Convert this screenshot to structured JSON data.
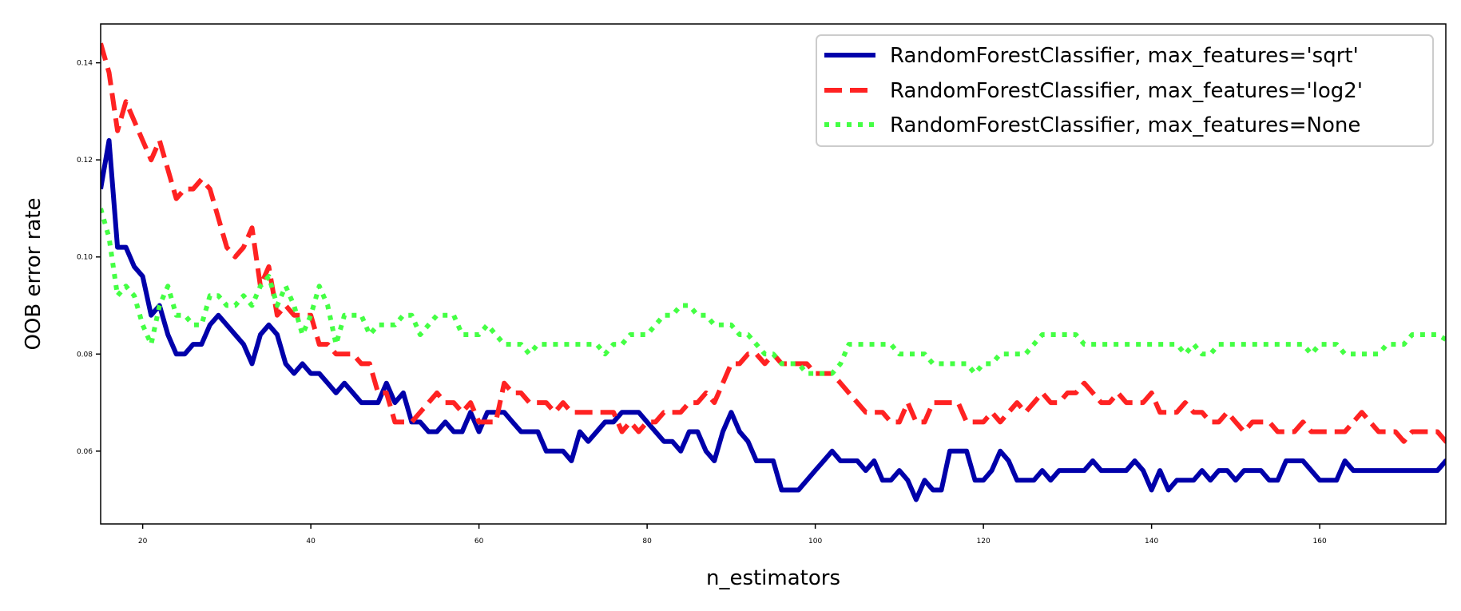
{
  "chart_data": {
    "type": "line",
    "title": "",
    "xlabel": "n_estimators",
    "ylabel": "OOB error rate",
    "xlim": [
      15,
      175
    ],
    "ylim": [
      0.045,
      0.148
    ],
    "x_ticks": [
      20,
      40,
      60,
      80,
      100,
      120,
      140,
      160
    ],
    "y_ticks": [
      0.06,
      0.08,
      0.1,
      0.12,
      0.14
    ],
    "y_tick_labels": [
      "0.06",
      "0.08",
      "0.10",
      "0.12",
      "0.14"
    ],
    "grid": false,
    "legend_position": "top-right",
    "x_start": 15,
    "x_step": 1,
    "series": [
      {
        "name": "RandomForestClassifier, max_features='sqrt'",
        "color": "#0000aa",
        "style": "solid",
        "values": [
          0.114,
          0.124,
          0.102,
          0.102,
          0.098,
          0.096,
          0.088,
          0.09,
          0.084,
          0.08,
          0.08,
          0.082,
          0.082,
          0.086,
          0.088,
          0.086,
          0.084,
          0.082,
          0.078,
          0.084,
          0.086,
          0.084,
          0.078,
          0.076,
          0.078,
          0.076,
          0.076,
          0.074,
          0.072,
          0.074,
          0.072,
          0.07,
          0.07,
          0.07,
          0.074,
          0.07,
          0.072,
          0.066,
          0.066,
          0.064,
          0.064,
          0.066,
          0.064,
          0.064,
          0.068,
          0.064,
          0.068,
          0.068,
          0.068,
          0.066,
          0.064,
          0.064,
          0.064,
          0.06,
          0.06,
          0.06,
          0.058,
          0.064,
          0.062,
          0.064,
          0.066,
          0.066,
          0.068,
          0.068,
          0.068,
          0.066,
          0.064,
          0.062,
          0.062,
          0.06,
          0.064,
          0.064,
          0.06,
          0.058,
          0.064,
          0.068,
          0.064,
          0.062,
          0.058,
          0.058,
          0.058,
          0.052,
          0.052,
          0.052,
          0.054,
          0.056,
          0.058,
          0.06,
          0.058,
          0.058,
          0.058,
          0.056,
          0.058,
          0.054,
          0.054,
          0.056,
          0.054,
          0.05,
          0.054,
          0.052,
          0.052,
          0.06,
          0.06,
          0.06,
          0.054,
          0.054,
          0.056,
          0.06,
          0.058,
          0.054,
          0.054,
          0.054,
          0.056,
          0.054,
          0.056,
          0.056,
          0.056,
          0.056,
          0.058,
          0.056,
          0.056,
          0.056,
          0.056,
          0.058,
          0.056,
          0.052,
          0.056,
          0.052,
          0.054,
          0.054,
          0.054,
          0.056,
          0.054,
          0.056,
          0.056,
          0.054,
          0.056,
          0.056,
          0.056,
          0.054,
          0.054,
          0.058,
          0.058,
          0.058,
          0.056,
          0.054,
          0.054,
          0.054,
          0.058,
          0.056,
          0.056,
          0.056,
          0.056,
          0.056,
          0.056,
          0.056,
          0.056,
          0.056,
          0.056,
          0.056,
          0.058,
          0.058
        ]
      },
      {
        "name": "RandomForestClassifier, max_features='log2'",
        "color": "#ff2222",
        "style": "dashed",
        "values": [
          0.144,
          0.138,
          0.126,
          0.132,
          0.128,
          0.124,
          0.12,
          0.124,
          0.118,
          0.112,
          0.114,
          0.114,
          0.116,
          0.114,
          0.108,
          0.102,
          0.1,
          0.102,
          0.106,
          0.094,
          0.098,
          0.088,
          0.09,
          0.088,
          0.088,
          0.088,
          0.082,
          0.082,
          0.08,
          0.08,
          0.08,
          0.078,
          0.078,
          0.072,
          0.072,
          0.066,
          0.066,
          0.066,
          0.068,
          0.07,
          0.072,
          0.07,
          0.07,
          0.068,
          0.07,
          0.066,
          0.066,
          0.066,
          0.074,
          0.072,
          0.072,
          0.07,
          0.07,
          0.07,
          0.068,
          0.07,
          0.068,
          0.068,
          0.068,
          0.068,
          0.068,
          0.068,
          0.064,
          0.066,
          0.064,
          0.066,
          0.066,
          0.068,
          0.068,
          0.068,
          0.07,
          0.07,
          0.072,
          0.07,
          0.074,
          0.078,
          0.078,
          0.08,
          0.08,
          0.078,
          0.08,
          0.078,
          0.078,
          0.078,
          0.078,
          0.076,
          0.076,
          0.076,
          0.074,
          0.072,
          0.07,
          0.068,
          0.068,
          0.068,
          0.066,
          0.066,
          0.07,
          0.066,
          0.066,
          0.07,
          0.07,
          0.07,
          0.07,
          0.066,
          0.066,
          0.066,
          0.068,
          0.066,
          0.068,
          0.07,
          0.068,
          0.07,
          0.072,
          0.07,
          0.07,
          0.072,
          0.072,
          0.074,
          0.072,
          0.07,
          0.07,
          0.072,
          0.07,
          0.07,
          0.07,
          0.072,
          0.068,
          0.068,
          0.068,
          0.07,
          0.068,
          0.068,
          0.066,
          0.066,
          0.068,
          0.066,
          0.064,
          0.066,
          0.066,
          0.066,
          0.064,
          0.064,
          0.064,
          0.066,
          0.064,
          0.064,
          0.064,
          0.064,
          0.064,
          0.066,
          0.068,
          0.066,
          0.064,
          0.064,
          0.064,
          0.062,
          0.064,
          0.064,
          0.064,
          0.064,
          0.062,
          0.064
        ]
      },
      {
        "name": "RandomForestClassifier, max_features=None",
        "color": "#44ff44",
        "style": "dotted",
        "values": [
          0.11,
          0.104,
          0.092,
          0.094,
          0.092,
          0.086,
          0.082,
          0.09,
          0.094,
          0.088,
          0.088,
          0.086,
          0.086,
          0.092,
          0.092,
          0.09,
          0.09,
          0.092,
          0.09,
          0.094,
          0.096,
          0.09,
          0.094,
          0.09,
          0.084,
          0.088,
          0.094,
          0.09,
          0.082,
          0.088,
          0.088,
          0.088,
          0.084,
          0.086,
          0.086,
          0.086,
          0.088,
          0.088,
          0.084,
          0.086,
          0.088,
          0.088,
          0.088,
          0.084,
          0.084,
          0.084,
          0.086,
          0.084,
          0.082,
          0.082,
          0.082,
          0.08,
          0.082,
          0.082,
          0.082,
          0.082,
          0.082,
          0.082,
          0.082,
          0.082,
          0.08,
          0.082,
          0.082,
          0.084,
          0.084,
          0.084,
          0.086,
          0.088,
          0.088,
          0.09,
          0.09,
          0.088,
          0.088,
          0.086,
          0.086,
          0.086,
          0.084,
          0.084,
          0.082,
          0.08,
          0.08,
          0.078,
          0.078,
          0.078,
          0.076,
          0.076,
          0.076,
          0.076,
          0.078,
          0.082,
          0.082,
          0.082,
          0.082,
          0.082,
          0.082,
          0.08,
          0.08,
          0.08,
          0.08,
          0.078,
          0.078,
          0.078,
          0.078,
          0.078,
          0.076,
          0.078,
          0.078,
          0.08,
          0.08,
          0.08,
          0.08,
          0.082,
          0.084,
          0.084,
          0.084,
          0.084,
          0.084,
          0.082,
          0.082,
          0.082,
          0.082,
          0.082,
          0.082,
          0.082,
          0.082,
          0.082,
          0.082,
          0.082,
          0.082,
          0.08,
          0.082,
          0.08,
          0.08,
          0.082,
          0.082,
          0.082,
          0.082,
          0.082,
          0.082,
          0.082,
          0.082,
          0.082,
          0.082,
          0.082,
          0.08,
          0.082,
          0.082,
          0.082,
          0.08,
          0.08,
          0.08,
          0.08,
          0.08,
          0.082,
          0.082,
          0.082,
          0.084,
          0.084,
          0.084,
          0.084,
          0.083
        ]
      }
    ]
  }
}
